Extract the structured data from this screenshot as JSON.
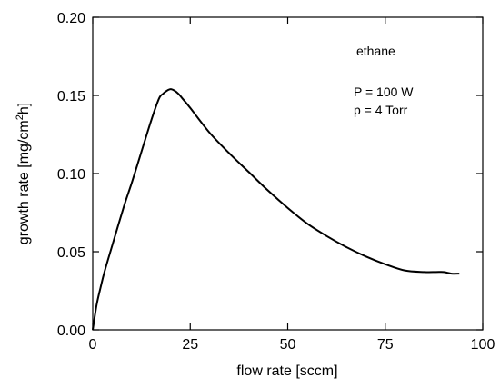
{
  "chart_data": {
    "type": "line",
    "xlabel": "flow rate [sccm]",
    "ylabel_main": "growth rate [mg/cm",
    "ylabel_sup": "2",
    "ylabel_end": "h]",
    "xlim": [
      0,
      100
    ],
    "ylim": [
      0.0,
      0.2
    ],
    "x_ticks": [
      0,
      25,
      50,
      75,
      100
    ],
    "x_tick_labels": [
      "0",
      "25",
      "50",
      "75",
      "100"
    ],
    "y_ticks": [
      0.0,
      0.05,
      0.1,
      0.15,
      0.2
    ],
    "y_tick_labels": [
      "0.00",
      "0.05",
      "0.10",
      "0.15",
      "0.20"
    ],
    "grid": false,
    "annotations": [
      "ethane",
      "P = 100 W",
      "p = 4 Torr"
    ],
    "series": [
      {
        "color": "#000000",
        "x": [
          0,
          1,
          2,
          3,
          5,
          8,
          10,
          12,
          15,
          17,
          18,
          19,
          20,
          21,
          22,
          23,
          25,
          30,
          35,
          40,
          45,
          50,
          55,
          60,
          65,
          70,
          75,
          80,
          85,
          88,
          90,
          92,
          94
        ],
        "y": [
          0.0,
          0.016,
          0.027,
          0.037,
          0.054,
          0.079,
          0.094,
          0.11,
          0.134,
          0.148,
          0.151,
          0.153,
          0.154,
          0.153,
          0.151,
          0.148,
          0.142,
          0.126,
          0.113,
          0.101,
          0.089,
          0.078,
          0.068,
          0.06,
          0.053,
          0.047,
          0.042,
          0.038,
          0.037,
          0.037,
          0.037,
          0.036,
          0.036
        ]
      }
    ]
  }
}
